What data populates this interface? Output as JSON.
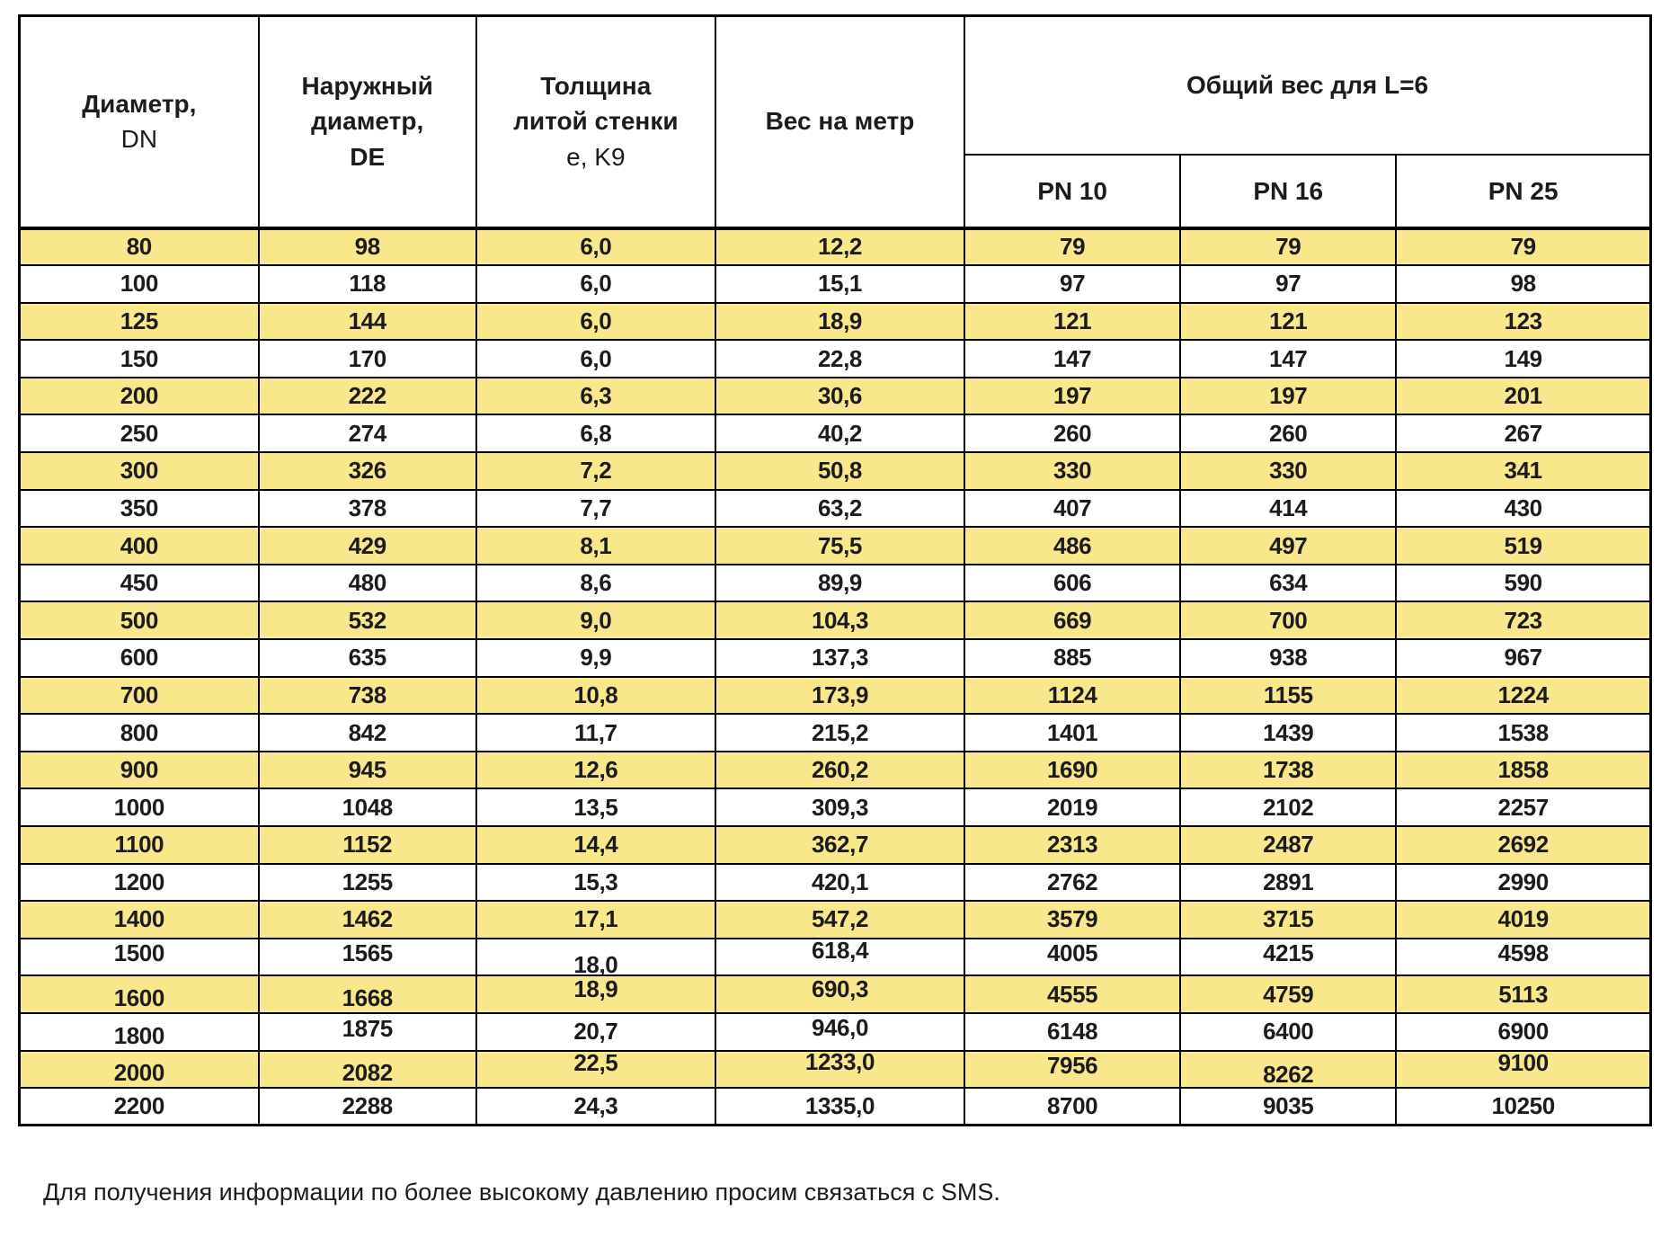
{
  "table": {
    "headers": {
      "diameter": {
        "line1": "Диаметр,",
        "line2": "DN"
      },
      "outer_diameter": {
        "line1": "Наружный",
        "line2": "диаметр,",
        "line3": "DE"
      },
      "wall_thickness": {
        "line1": "Толщина",
        "line2": "литой стенки",
        "line3": "e, K9"
      },
      "weight_per_meter": "Вес на метр",
      "total_weight_group": "Общий вес для L=6",
      "pn_columns": [
        "PN 10",
        "PN 16",
        "PN 25"
      ]
    },
    "rows": [
      [
        "80",
        "98",
        "6,0",
        "12,2",
        "79",
        "79",
        "79"
      ],
      [
        "100",
        "118",
        "6,0",
        "15,1",
        "97",
        "97",
        "98"
      ],
      [
        "125",
        "144",
        "6,0",
        "18,9",
        "121",
        "121",
        "123"
      ],
      [
        "150",
        "170",
        "6,0",
        "22,8",
        "147",
        "147",
        "149"
      ],
      [
        "200",
        "222",
        "6,3",
        "30,6",
        "197",
        "197",
        "201"
      ],
      [
        "250",
        "274",
        "6,8",
        "40,2",
        "260",
        "260",
        "267"
      ],
      [
        "300",
        "326",
        "7,2",
        "50,8",
        "330",
        "330",
        "341"
      ],
      [
        "350",
        "378",
        "7,7",
        "63,2",
        "407",
        "414",
        "430"
      ],
      [
        "400",
        "429",
        "8,1",
        "75,5",
        "486",
        "497",
        "519"
      ],
      [
        "450",
        "480",
        "8,6",
        "89,9",
        "606",
        "634",
        "590"
      ],
      [
        "500",
        "532",
        "9,0",
        "104,3",
        "669",
        "700",
        "723"
      ],
      [
        "600",
        "635",
        "9,9",
        "137,3",
        "885",
        "938",
        "967"
      ],
      [
        "700",
        "738",
        "10,8",
        "173,9",
        "1124",
        "1155",
        "1224"
      ],
      [
        "800",
        "842",
        "11,7",
        "215,2",
        "1401",
        "1439",
        "1538"
      ],
      [
        "900",
        "945",
        "12,6",
        "260,2",
        "1690",
        "1738",
        "1858"
      ],
      [
        "1000",
        "1048",
        "13,5",
        "309,3",
        "2019",
        "2102",
        "2257"
      ],
      [
        "1100",
        "1152",
        "14,4",
        "362,7",
        "2313",
        "2487",
        "2692"
      ],
      [
        "1200",
        "1255",
        "15,3",
        "420,1",
        "2762",
        "2891",
        "2990"
      ],
      [
        "1400",
        "1462",
        "17,1",
        "547,2",
        "3579",
        "3715",
        "4019"
      ],
      [
        "1500",
        "1565",
        "18,0",
        "618,4",
        "4005",
        "4215",
        "4598"
      ],
      [
        "1600",
        "1668",
        "18,9",
        "690,3",
        "4555",
        "4759",
        "5113"
      ],
      [
        "1800",
        "1875",
        "20,7",
        "946,0",
        "6148",
        "6400",
        "6900"
      ],
      [
        "2000",
        "2082",
        "22,5",
        "1233,0",
        "7956",
        "8262",
        "9100"
      ],
      [
        "2200",
        "2288",
        "24,3",
        "1335,0",
        "8700",
        "9035",
        "10250"
      ]
    ]
  },
  "footnote": "Для получения информации по более высокому давлению просим связаться с SMS.",
  "colors": {
    "row_highlight": "#F9E78C",
    "border": "#000000",
    "text": "#1C1C1C"
  }
}
